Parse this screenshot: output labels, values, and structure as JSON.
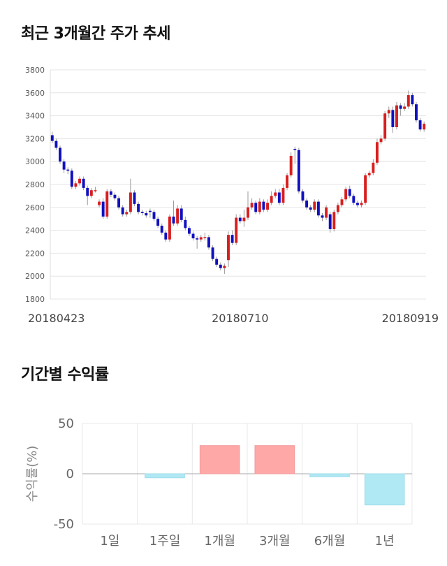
{
  "titles": {
    "price_trend": "최근 3개월간 주가 추세",
    "period_returns": "기간별 수익률"
  },
  "colors": {
    "up": "#d81e1e",
    "down": "#1010c0",
    "positive_bar": "#ffa8a8",
    "negative_bar": "#b0e8f4"
  },
  "chart_data": [
    {
      "type": "candlestick",
      "title": "최근 3개월간 주가 추세",
      "ylim": [
        1800,
        3800
      ],
      "yticks": [
        1800,
        2000,
        2200,
        2400,
        2600,
        2800,
        3000,
        3200,
        3400,
        3600,
        3800
      ],
      "xtick_labels": [
        "20180423",
        "20180710",
        "20180919"
      ],
      "xtick_index": [
        0,
        48,
        93
      ],
      "grid": true,
      "close": [
        3180,
        3120,
        3000,
        2930,
        2920,
        2780,
        2810,
        2850,
        2770,
        2700,
        2750,
        2750,
        2650,
        2520,
        2740,
        2710,
        2680,
        2600,
        2540,
        2560,
        2730,
        2630,
        2560,
        2550,
        2530,
        2560,
        2500,
        2440,
        2380,
        2320,
        2520,
        2460,
        2590,
        2490,
        2420,
        2370,
        2330,
        2320,
        2340,
        2340,
        2250,
        2150,
        2100,
        2070,
        2090,
        2360,
        2290,
        2510,
        2480,
        2510,
        2600,
        2640,
        2560,
        2650,
        2580,
        2640,
        2700,
        2730,
        2640,
        2770,
        2880,
        3050,
        3100,
        2740,
        2660,
        2600,
        2580,
        2650,
        2530,
        2510,
        2600,
        2410,
        2560,
        2620,
        2670,
        2760,
        2700,
        2640,
        2620,
        2640,
        2880,
        2900,
        2990,
        3170,
        3200,
        3420,
        3450,
        3300,
        3490,
        3460,
        3480,
        3580,
        3500,
        3360,
        3280,
        3330
      ],
      "open": [
        3230,
        3180,
        3120,
        3000,
        2930,
        2920,
        2780,
        2810,
        2850,
        2770,
        2700,
        2750,
        2620,
        2650,
        2520,
        2740,
        2710,
        2680,
        2600,
        2540,
        2560,
        2730,
        2630,
        2560,
        2550,
        2570,
        2560,
        2500,
        2440,
        2380,
        2320,
        2520,
        2460,
        2590,
        2490,
        2420,
        2370,
        2330,
        2320,
        2340,
        2340,
        2250,
        2150,
        2100,
        2070,
        2140,
        2360,
        2290,
        2510,
        2480,
        2510,
        2600,
        2640,
        2560,
        2650,
        2580,
        2640,
        2700,
        2730,
        2640,
        2770,
        2880,
        3110,
        3100,
        2740,
        2660,
        2600,
        2580,
        2650,
        2530,
        2510,
        2540,
        2410,
        2560,
        2620,
        2670,
        2760,
        2700,
        2640,
        2620,
        2640,
        2880,
        2900,
        2990,
        3170,
        3200,
        3420,
        3450,
        3300,
        3490,
        3460,
        3480,
        3580,
        3500,
        3360,
        3280
      ],
      "high": [
        3260,
        3200,
        3140,
        3020,
        2950,
        2940,
        2830,
        2870,
        2870,
        2790,
        2770,
        2780,
        2670,
        2680,
        2760,
        2760,
        2730,
        2700,
        2620,
        2580,
        2850,
        2750,
        2650,
        2580,
        2570,
        2590,
        2580,
        2520,
        2460,
        2400,
        2540,
        2660,
        2620,
        2620,
        2520,
        2440,
        2390,
        2350,
        2360,
        2380,
        2360,
        2270,
        2170,
        2120,
        2110,
        2390,
        2400,
        2540,
        2540,
        2580,
        2740,
        2680,
        2660,
        2680,
        2670,
        2670,
        2740,
        2760,
        2760,
        2800,
        2900,
        3080,
        3130,
        3120,
        2760,
        2680,
        2620,
        2670,
        2670,
        2550,
        2620,
        2560,
        2580,
        2640,
        2690,
        2780,
        2790,
        2720,
        2660,
        2660,
        2900,
        2920,
        3020,
        3200,
        3230,
        3440,
        3480,
        3480,
        3520,
        3510,
        3510,
        3620,
        3600,
        3520,
        3380,
        3350
      ],
      "low": [
        3160,
        3100,
        2980,
        2900,
        2890,
        2760,
        2760,
        2790,
        2750,
        2620,
        2680,
        2730,
        2600,
        2500,
        2500,
        2690,
        2660,
        2580,
        2520,
        2520,
        2540,
        2610,
        2540,
        2530,
        2510,
        2510,
        2480,
        2420,
        2360,
        2300,
        2300,
        2440,
        2440,
        2470,
        2400,
        2350,
        2310,
        2240,
        2300,
        2310,
        2230,
        2130,
        2080,
        2050,
        2020,
        2080,
        2270,
        2270,
        2460,
        2430,
        2490,
        2580,
        2540,
        2540,
        2560,
        2560,
        2620,
        2680,
        2620,
        2620,
        2750,
        2860,
        2980,
        2720,
        2640,
        2580,
        2560,
        2560,
        2510,
        2480,
        2490,
        2380,
        2390,
        2540,
        2600,
        2650,
        2680,
        2620,
        2600,
        2600,
        2620,
        2860,
        2880,
        2970,
        3150,
        3180,
        3380,
        3250,
        3280,
        3400,
        3440,
        3460,
        3480,
        3340,
        3260,
        3260
      ]
    },
    {
      "type": "bar",
      "title": "기간별 수익률",
      "categories": [
        "1일",
        "1주일",
        "1개월",
        "3개월",
        "6개월",
        "1년"
      ],
      "values": [
        0,
        -4,
        28,
        28,
        -3,
        -31
      ],
      "ylabel": "수익률(%)",
      "ylim": [
        -50,
        50
      ],
      "yticks": [
        -50,
        0,
        50
      ],
      "grid": true
    }
  ]
}
